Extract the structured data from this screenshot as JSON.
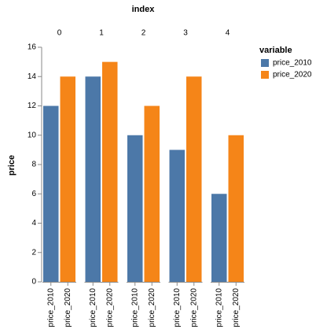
{
  "chart_data": {
    "type": "bar",
    "facet_title": "index",
    "facets": [
      "0",
      "1",
      "2",
      "3",
      "4"
    ],
    "ylabel": "price",
    "legend_title": "variable",
    "series": [
      {
        "name": "price_2010",
        "color": "#4c78a8",
        "values": [
          12,
          14,
          10,
          9,
          6
        ]
      },
      {
        "name": "price_2020",
        "color": "#f58518",
        "values": [
          14,
          15,
          12,
          14,
          10
        ]
      }
    ],
    "ylim": [
      0,
      16
    ],
    "yticks": [
      0,
      2,
      4,
      6,
      8,
      10,
      12,
      14,
      16
    ]
  }
}
